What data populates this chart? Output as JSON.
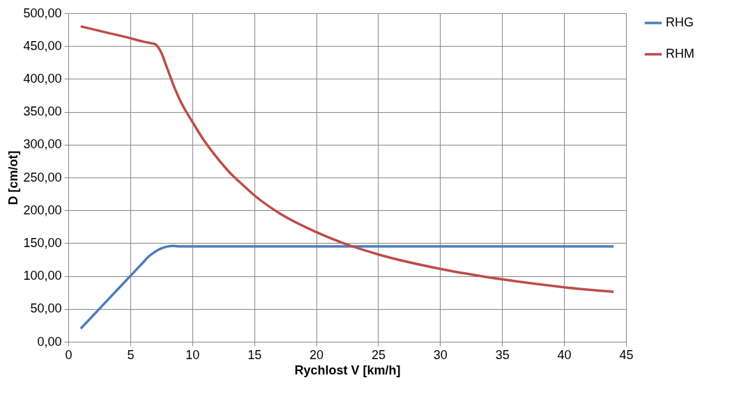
{
  "chart_data": {
    "type": "line",
    "xlabel": "Rychlost V [km/h]",
    "ylabel": "D [cm/ot]",
    "xlim": [
      0,
      45
    ],
    "xticks": [
      0,
      5,
      10,
      15,
      20,
      25,
      30,
      35,
      40,
      45
    ],
    "ylim": [
      0,
      500
    ],
    "yticks": [
      {
        "value": 0,
        "label": "0,00"
      },
      {
        "value": 50,
        "label": "50,00"
      },
      {
        "value": 100,
        "label": "100,00"
      },
      {
        "value": 150,
        "label": "150,00"
      },
      {
        "value": 200,
        "label": "200,00"
      },
      {
        "value": 250,
        "label": "250,00"
      },
      {
        "value": 300,
        "label": "300,00"
      },
      {
        "value": 350,
        "label": "350,00"
      },
      {
        "value": 400,
        "label": "400,00"
      },
      {
        "value": 450,
        "label": "450,00"
      },
      {
        "value": 500,
        "label": "500,00"
      }
    ],
    "grid": true,
    "legend": "right",
    "marker": "none",
    "line_style": "solid",
    "series": [
      {
        "name": "RHG",
        "color": "#4a7ebb",
        "x": [
          1,
          3,
          5,
          6,
          6.5,
          7,
          7.5,
          8,
          8.5,
          9,
          15,
          20,
          25,
          30,
          35,
          40,
          44
        ],
        "values": [
          20,
          60,
          100,
          120,
          130,
          137,
          142,
          145,
          146,
          145,
          145,
          145,
          145,
          145,
          145,
          145,
          145
        ]
      },
      {
        "name": "RHM",
        "color": "#be4b48",
        "x": [
          1,
          3,
          5,
          6,
          6.5,
          7,
          7.5,
          8,
          8.5,
          9,
          10,
          11,
          12,
          13,
          14,
          15,
          17,
          20,
          22.5,
          25,
          30,
          35,
          40,
          44
        ],
        "values": [
          480,
          471,
          462,
          457,
          455,
          453,
          440,
          415,
          390,
          368,
          335,
          305,
          280,
          258,
          240,
          223,
          196,
          167,
          148,
          133,
          111,
          95,
          83,
          76
        ]
      }
    ]
  }
}
